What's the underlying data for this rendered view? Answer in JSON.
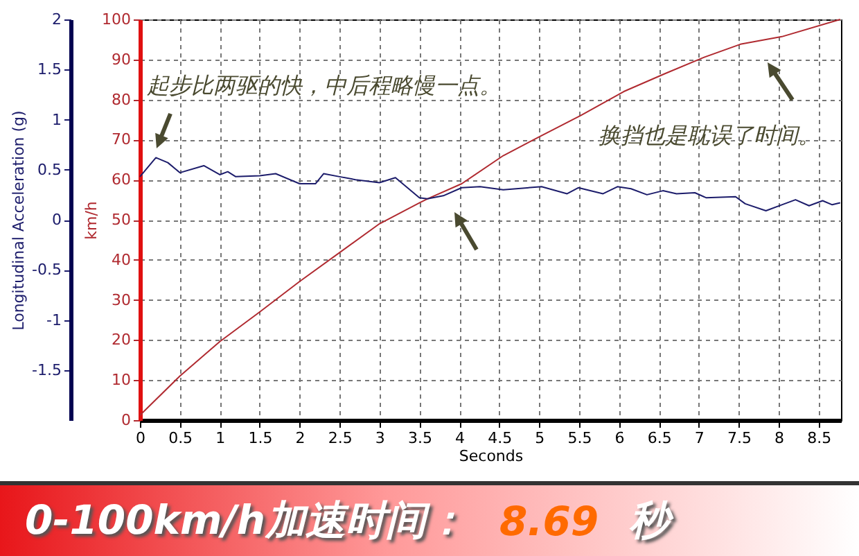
{
  "chart_data": {
    "type": "line",
    "xlabel": "Seconds",
    "ylabel": "Longitudinal Acceleration (g)",
    "y2label": "km/h",
    "xlim": [
      0,
      8.78
    ],
    "xticks": [
      0,
      0.5,
      1,
      1.5,
      2,
      2.5,
      3,
      3.5,
      4,
      4.5,
      5,
      5.5,
      6,
      6.5,
      7,
      7.5,
      8,
      8.5
    ],
    "ylim": [
      -2,
      2
    ],
    "yticks": [
      -1.5,
      -1,
      -0.5,
      0,
      0.5,
      1,
      1.5,
      2
    ],
    "y2lim": [
      0,
      100
    ],
    "y2ticks": [
      0,
      10,
      20,
      30,
      40,
      50,
      60,
      70,
      80,
      90,
      100
    ],
    "grid": true,
    "series": [
      {
        "color": "#b02a30",
        "axis": "y2",
        "x": [
          0,
          0.5,
          1,
          1.5,
          2,
          2.5,
          3,
          3.5,
          3.6,
          4.03,
          4.55,
          5.03,
          5.52,
          6.06,
          6.58,
          7.06,
          7.52,
          8.04,
          8.77
        ],
        "values": [
          1.2,
          11,
          19.6,
          27,
          34.6,
          41.8,
          49,
          54.2,
          55.2,
          59,
          66,
          71,
          76,
          82,
          86.5,
          90.5,
          93.8,
          95.7,
          100
        ]
      },
      {
        "color": "#1c1c6b",
        "axis": "y",
        "x": [
          0,
          0.2,
          0.35,
          0.5,
          0.8,
          1.0,
          1.1,
          1.2,
          1.5,
          1.7,
          2.0,
          2.2,
          2.3,
          2.5,
          2.7,
          3.0,
          3.2,
          3.5,
          3.6,
          3.8,
          4.03,
          4.26,
          4.55,
          5.03,
          5.35,
          5.49,
          5.8,
          5.98,
          6.15,
          6.35,
          6.55,
          6.72,
          6.95,
          7.09,
          7.46,
          7.58,
          7.84,
          8.04,
          8.21,
          8.38,
          8.55,
          8.67,
          8.77
        ],
        "values": [
          0.43,
          0.62,
          0.57,
          0.47,
          0.54,
          0.45,
          0.48,
          0.43,
          0.44,
          0.46,
          0.36,
          0.36,
          0.46,
          0.43,
          0.4,
          0.37,
          0.42,
          0.22,
          0.21,
          0.24,
          0.32,
          0.33,
          0.3,
          0.33,
          0.26,
          0.32,
          0.26,
          0.33,
          0.31,
          0.25,
          0.29,
          0.26,
          0.27,
          0.22,
          0.23,
          0.16,
          0.09,
          0.15,
          0.2,
          0.14,
          0.19,
          0.15,
          0.17
        ]
      }
    ],
    "annotations": [
      "起步比两驱的快，中后程略慢一点。",
      "换挡也是耽误了时间。",
      "0-100km/h加速时间：",
      "8.69",
      "秒"
    ]
  }
}
